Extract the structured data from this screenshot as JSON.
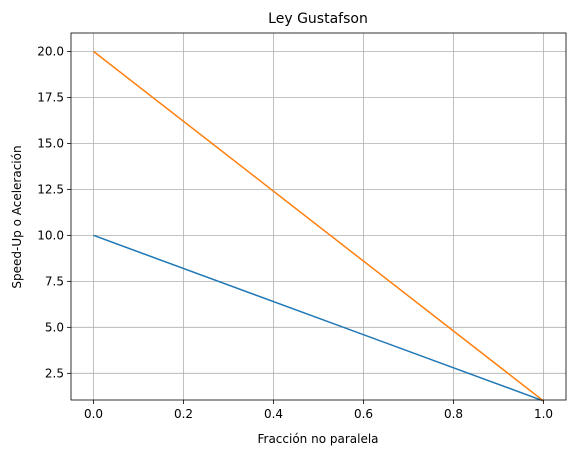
{
  "chart_data": {
    "type": "line",
    "title": "Ley Gustafson",
    "xlabel": "Fracción no paralela",
    "ylabel": "Speed-Up o Aceleración",
    "xlim": [
      -0.05,
      1.05
    ],
    "ylim": [
      1.05,
      21.0
    ],
    "xticks": [
      0.0,
      0.2,
      0.4,
      0.6,
      0.8,
      1.0
    ],
    "xtick_labels": [
      "0.0",
      "0.2",
      "0.4",
      "0.6",
      "0.8",
      "1.0"
    ],
    "yticks": [
      2.5,
      5.0,
      7.5,
      10.0,
      12.5,
      15.0,
      17.5,
      20.0
    ],
    "ytick_labels": [
      "2.5",
      "5.0",
      "7.5",
      "10.0",
      "12.5",
      "15.0",
      "17.5",
      "20.0"
    ],
    "grid": true,
    "series": [
      {
        "color": "#1f77b4",
        "x": [
          0.0,
          1.0
        ],
        "y": [
          10.0,
          1.0
        ]
      },
      {
        "color": "#ff7f0e",
        "x": [
          0.0,
          1.0
        ],
        "y": [
          20.0,
          1.0
        ]
      }
    ]
  }
}
